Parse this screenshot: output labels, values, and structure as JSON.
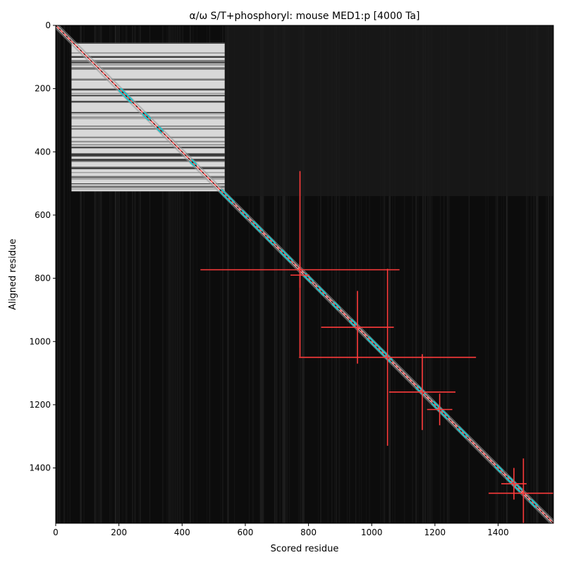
{
  "chart_data": {
    "type": "heatmap",
    "title": "α/ω S/T+phosphoryl: mouse MED1:p [4000 Ta]",
    "xlabel": "Scored residue",
    "ylabel": "Aligned residue",
    "xlim": [
      0,
      1575
    ],
    "ylim": [
      1575,
      0
    ],
    "x_ticks": [
      0,
      200,
      400,
      600,
      800,
      1000,
      1200,
      1400
    ],
    "y_ticks": [
      0,
      200,
      400,
      600,
      800,
      1000,
      1200,
      1400
    ],
    "grid": false,
    "legend": "none",
    "colors": {
      "background": "#0c0c0c",
      "block": "#d8d8d8",
      "diagonal_fit": "#ff4d4d",
      "segments": "#20c4c8",
      "error_bars": "#ff3b3b",
      "diagonal_core": "#000000"
    },
    "bright_block": {
      "x0": 50,
      "x1": 535,
      "y0": 55,
      "y1": 525
    },
    "diagonal_fit": {
      "x": [
        0,
        1575
      ],
      "y": [
        0,
        1575
      ]
    },
    "cyan_segments": [
      {
        "x0": 205,
        "x1": 240
      },
      {
        "x0": 280,
        "x1": 295
      },
      {
        "x0": 325,
        "x1": 335
      },
      {
        "x0": 430,
        "x1": 440
      },
      {
        "x0": 525,
        "x1": 560
      },
      {
        "x0": 590,
        "x1": 605
      },
      {
        "x0": 625,
        "x1": 650
      },
      {
        "x0": 670,
        "x1": 690
      },
      {
        "x0": 715,
        "x1": 745
      },
      {
        "x0": 790,
        "x1": 810
      },
      {
        "x0": 830,
        "x1": 850
      },
      {
        "x0": 880,
        "x1": 895
      },
      {
        "x0": 935,
        "x1": 950
      },
      {
        "x0": 990,
        "x1": 1060
      },
      {
        "x0": 1145,
        "x1": 1165
      },
      {
        "x0": 1195,
        "x1": 1240
      },
      {
        "x0": 1275,
        "x1": 1300
      },
      {
        "x0": 1395,
        "x1": 1410
      },
      {
        "x0": 1430,
        "x1": 1470
      },
      {
        "x0": 1505,
        "x1": 1520
      }
    ],
    "error_points": [
      {
        "x": 773,
        "y": 773,
        "xerr": [
          315,
          315
        ],
        "yerr": [
          312,
          275
        ]
      },
      {
        "x": 773,
        "y": 790,
        "xerr": [
          30,
          30
        ],
        "yerr": [
          40,
          40
        ]
      },
      {
        "x": 955,
        "y": 955,
        "xerr": [
          115,
          115
        ],
        "yerr": [
          115,
          115
        ]
      },
      {
        "x": 1050,
        "y": 1050,
        "xerr": [
          280,
          280
        ],
        "yerr": [
          280,
          280
        ]
      },
      {
        "x": 1160,
        "y": 1160,
        "xerr": [
          105,
          105
        ],
        "yerr": [
          120,
          120
        ]
      },
      {
        "x": 1215,
        "y": 1215,
        "xerr": [
          40,
          40
        ],
        "yerr": [
          50,
          50
        ]
      },
      {
        "x": 1450,
        "y": 1450,
        "xerr": [
          40,
          40
        ],
        "yerr": [
          50,
          50
        ]
      },
      {
        "x": 1480,
        "y": 1480,
        "xerr": [
          110,
          110
        ],
        "yerr": [
          110,
          110
        ]
      }
    ]
  }
}
